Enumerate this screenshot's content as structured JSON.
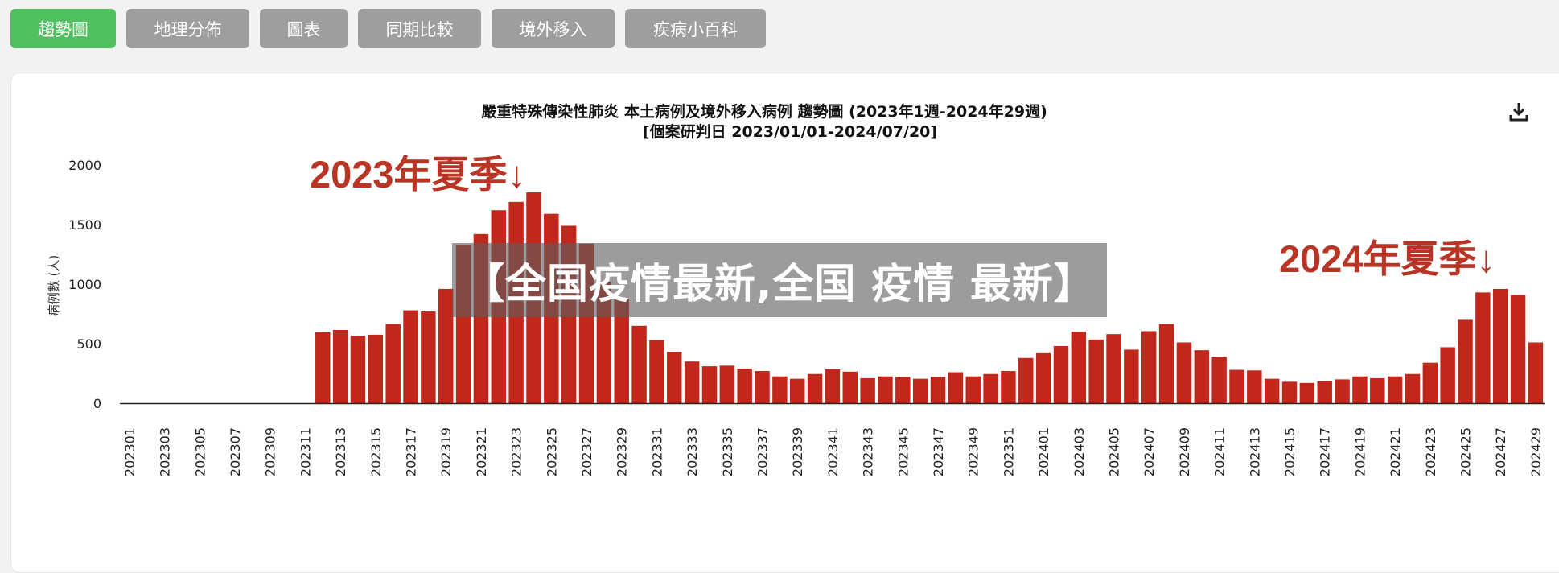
{
  "tabs": [
    {
      "label": "趨勢圖",
      "active": true
    },
    {
      "label": "地理分佈",
      "active": false
    },
    {
      "label": "圖表",
      "active": false
    },
    {
      "label": "同期比較",
      "active": false
    },
    {
      "label": "境外移入",
      "active": false
    },
    {
      "label": "疾病小百科",
      "active": false
    }
  ],
  "overlay": {
    "text": "【全国疫情最新,全国 疫情 最新】"
  },
  "annotations": {
    "summer_2023": "2023年夏季↓",
    "summer_2024": "2024年夏季↓"
  },
  "download_icon": "download-icon",
  "colors": {
    "bar": "#c2271c",
    "tab_active": "#4fbf5f",
    "tab": "#9e9e9e",
    "annotation": "#b83525"
  },
  "chart_data": {
    "type": "bar",
    "title": "嚴重特殊傳染性肺炎 本土病例及境外移入病例 趨勢圖 (2023年1週-2024年29週)",
    "subtitle": "[個案研判日 2023/01/01-2024/07/20]",
    "ylabel": "病例數 (人)",
    "xlabel": "",
    "ylim": [
      0,
      2000
    ],
    "yticks": [
      0,
      500,
      1000,
      1500,
      2000
    ],
    "grid": false,
    "categories": [
      "202301",
      "202302",
      "202303",
      "202304",
      "202305",
      "202306",
      "202307",
      "202308",
      "202309",
      "202310",
      "202311",
      "202312",
      "202313",
      "202314",
      "202315",
      "202316",
      "202317",
      "202318",
      "202319",
      "202320",
      "202321",
      "202322",
      "202323",
      "202324",
      "202325",
      "202326",
      "202327",
      "202328",
      "202329",
      "202330",
      "202331",
      "202332",
      "202333",
      "202334",
      "202335",
      "202336",
      "202337",
      "202338",
      "202339",
      "202340",
      "202341",
      "202342",
      "202343",
      "202344",
      "202345",
      "202346",
      "202347",
      "202348",
      "202349",
      "202350",
      "202351",
      "202352",
      "202401",
      "202402",
      "202403",
      "202404",
      "202405",
      "202406",
      "202407",
      "202408",
      "202409",
      "202410",
      "202411",
      "202412",
      "202413",
      "202414",
      "202415",
      "202416",
      "202417",
      "202418",
      "202419",
      "202420",
      "202421",
      "202422",
      "202423",
      "202424",
      "202425",
      "202426",
      "202427",
      "202428",
      "202429"
    ],
    "tick_labels": [
      "202301",
      "202303",
      "202305",
      "202307",
      "202309",
      "202311",
      "202313",
      "202315",
      "202317",
      "202319",
      "202321",
      "202323",
      "202325",
      "202327",
      "202329",
      "202331",
      "202333",
      "202335",
      "202337",
      "202339",
      "202341",
      "202343",
      "202345",
      "202347",
      "202349",
      "202351",
      "202401",
      "202403",
      "202405",
      "202407",
      "202409",
      "202411",
      "202413",
      "202415",
      "202417",
      "202419",
      "202421",
      "202423",
      "202425",
      "202427",
      "202429"
    ],
    "values": [
      0,
      0,
      0,
      0,
      0,
      0,
      0,
      0,
      0,
      0,
      0,
      595,
      615,
      565,
      575,
      665,
      780,
      770,
      960,
      1330,
      1420,
      1620,
      1690,
      1770,
      1590,
      1490,
      1340,
      1020,
      880,
      650,
      530,
      430,
      350,
      310,
      315,
      290,
      270,
      225,
      205,
      245,
      285,
      265,
      210,
      225,
      220,
      205,
      220,
      260,
      225,
      245,
      270,
      380,
      420,
      480,
      600,
      535,
      580,
      450,
      605,
      665,
      510,
      445,
      390,
      280,
      275,
      205,
      180,
      170,
      185,
      200,
      225,
      210,
      225,
      245,
      340,
      470,
      700,
      930,
      960,
      910,
      510
    ]
  }
}
